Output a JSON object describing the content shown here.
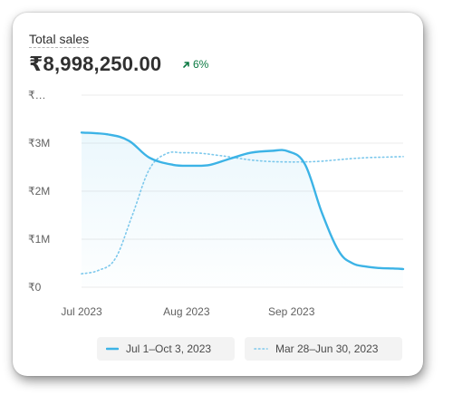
{
  "card": {
    "title": "Total sales",
    "total": "₹8,998,250.00",
    "delta": "6%"
  },
  "colors": {
    "primary_line": "#3cb3e6",
    "comparison_line": "#7cc8ec",
    "delta_green": "#0c7a43",
    "grid": "#ebebeb",
    "label": "#616161"
  },
  "icons": {
    "delta": "arrow-up-right-icon"
  },
  "chart_data": {
    "type": "line",
    "title": "",
    "xlabel": "",
    "ylabel": "",
    "y_ticks": [
      "₹…",
      "₹3M",
      "₹2M",
      "₹1M",
      "₹0"
    ],
    "x_ticks": [
      "Jul 2023",
      "Aug 2023",
      "Sep 2023"
    ],
    "ylim": [
      0,
      4000000
    ],
    "x_span_days": 95,
    "grid": true,
    "legend_position": "bottom",
    "series": [
      {
        "name": "Jul 1–Oct 3, 2023",
        "style": "solid",
        "x": [
          0,
          8,
          14,
          20,
          27,
          33,
          38,
          44,
          50,
          56,
          61,
          66,
          71,
          76,
          80,
          84,
          88,
          92,
          95
        ],
        "values": [
          3220000,
          3180000,
          3050000,
          2700000,
          2550000,
          2530000,
          2550000,
          2680000,
          2800000,
          2840000,
          2830000,
          2560000,
          1550000,
          750000,
          500000,
          430000,
          400000,
          390000,
          380000
        ]
      },
      {
        "name": "Mar 28–Jun 30, 2023",
        "style": "dotted",
        "x": [
          0,
          5,
          10,
          15,
          20,
          25,
          30,
          35,
          40,
          45,
          50,
          55,
          60,
          65,
          70,
          75,
          80,
          85,
          90,
          95
        ],
        "values": [
          280000,
          350000,
          600000,
          1500000,
          2450000,
          2780000,
          2800000,
          2790000,
          2750000,
          2700000,
          2650000,
          2620000,
          2610000,
          2610000,
          2620000,
          2650000,
          2680000,
          2700000,
          2710000,
          2720000
        ]
      }
    ]
  }
}
